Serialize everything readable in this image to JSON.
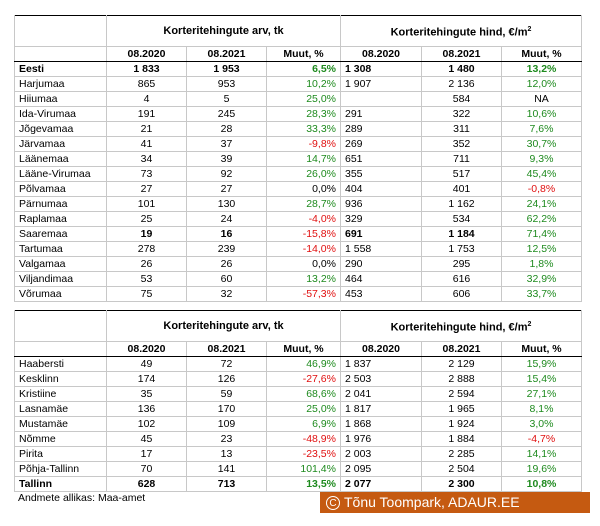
{
  "table1": {
    "group_count": "Korteritehingute arv, tk",
    "group_price_prefix": "Korteritehingute hind, €/m",
    "group_price_sup": "2",
    "headers": [
      "",
      "08.2020",
      "08.2021",
      "Muut, %",
      "08.2020",
      "08.2021",
      "Muut, %"
    ],
    "rows": [
      {
        "name": "Eesti",
        "bold": true,
        "c1": "1 833",
        "c2": "1 953",
        "cm": "6,5%",
        "cms": "pos",
        "p1": "1 308",
        "p2": "1 480",
        "pm": "13,2%",
        "pms": "pos"
      },
      {
        "name": "Harjumaa",
        "c1": "865",
        "c2": "953",
        "cm": "10,2%",
        "cms": "pos",
        "p1": "1 907",
        "p2": "2 136",
        "pm": "12,0%",
        "pms": "pos"
      },
      {
        "name": "Hiiumaa",
        "c1": "4",
        "c2": "5",
        "cm": "25,0%",
        "cms": "pos",
        "p1": "",
        "p2": "584",
        "pm": "NA",
        "pms": "neu"
      },
      {
        "name": "Ida-Virumaa",
        "c1": "191",
        "c2": "245",
        "cm": "28,3%",
        "cms": "pos",
        "p1": "291",
        "p2": "322",
        "pm": "10,6%",
        "pms": "pos"
      },
      {
        "name": "Jõgevamaa",
        "c1": "21",
        "c2": "28",
        "cm": "33,3%",
        "cms": "pos",
        "p1": "289",
        "p2": "311",
        "pm": "7,6%",
        "pms": "pos"
      },
      {
        "name": "Järvamaa",
        "c1": "41",
        "c2": "37",
        "cm": "-9,8%",
        "cms": "neg",
        "p1": "269",
        "p2": "352",
        "pm": "30,7%",
        "pms": "pos"
      },
      {
        "name": "Läänemaa",
        "c1": "34",
        "c2": "39",
        "cm": "14,7%",
        "cms": "pos",
        "p1": "651",
        "p2": "711",
        "pm": "9,3%",
        "pms": "pos"
      },
      {
        "name": "Lääne-Virumaa",
        "c1": "73",
        "c2": "92",
        "cm": "26,0%",
        "cms": "pos",
        "p1": "355",
        "p2": "517",
        "pm": "45,4%",
        "pms": "pos"
      },
      {
        "name": "Põlvamaa",
        "c1": "27",
        "c2": "27",
        "cm": "0,0%",
        "cms": "neu",
        "p1": "404",
        "p2": "401",
        "pm": "-0,8%",
        "pms": "neg"
      },
      {
        "name": "Pärnumaa",
        "c1": "101",
        "c2": "130",
        "cm": "28,7%",
        "cms": "pos",
        "p1": "936",
        "p2": "1 162",
        "pm": "24,1%",
        "pms": "pos"
      },
      {
        "name": "Raplamaa",
        "c1": "25",
        "c2": "24",
        "cm": "-4,0%",
        "cms": "neg",
        "p1": "329",
        "p2": "534",
        "pm": "62,2%",
        "pms": "pos"
      },
      {
        "name": "Saaremaa",
        "c1": "19",
        "c2": "16",
        "cm": "-15,8%",
        "cms": "neg",
        "p1": "691",
        "p2": "1 184",
        "pm": "71,4%",
        "pms": "pos",
        "boldnums": true
      },
      {
        "name": "Tartumaa",
        "c1": "278",
        "c2": "239",
        "cm": "-14,0%",
        "cms": "neg",
        "p1": "1 558",
        "p2": "1 753",
        "pm": "12,5%",
        "pms": "pos"
      },
      {
        "name": "Valgamaa",
        "c1": "26",
        "c2": "26",
        "cm": "0,0%",
        "cms": "neu",
        "p1": "290",
        "p2": "295",
        "pm": "1,8%",
        "pms": "pos"
      },
      {
        "name": "Viljandimaa",
        "c1": "53",
        "c2": "60",
        "cm": "13,2%",
        "cms": "pos",
        "p1": "464",
        "p2": "616",
        "pm": "32,9%",
        "pms": "pos"
      },
      {
        "name": "Võrumaa",
        "c1": "75",
        "c2": "32",
        "cm": "-57,3%",
        "cms": "neg",
        "p1": "453",
        "p2": "606",
        "pm": "33,7%",
        "pms": "pos"
      }
    ]
  },
  "table2": {
    "group_count": "Korteritehingute arv, tk",
    "group_price_prefix": "Korteritehingute hind, €/m",
    "group_price_sup": "2",
    "headers": [
      "",
      "08.2020",
      "08.2021",
      "Muut, %",
      "08.2020",
      "08.2021",
      "Muut, %"
    ],
    "rows": [
      {
        "name": "Haabersti",
        "c1": "49",
        "c2": "72",
        "cm": "46,9%",
        "cms": "pos",
        "p1": "1 837",
        "p2": "2 129",
        "pm": "15,9%",
        "pms": "pos"
      },
      {
        "name": "Kesklinn",
        "c1": "174",
        "c2": "126",
        "cm": "-27,6%",
        "cms": "neg",
        "p1": "2 503",
        "p2": "2 888",
        "pm": "15,4%",
        "pms": "pos"
      },
      {
        "name": "Kristiine",
        "c1": "35",
        "c2": "59",
        "cm": "68,6%",
        "cms": "pos",
        "p1": "2 041",
        "p2": "2 594",
        "pm": "27,1%",
        "pms": "pos"
      },
      {
        "name": "Lasnamäe",
        "c1": "136",
        "c2": "170",
        "cm": "25,0%",
        "cms": "pos",
        "p1": "1 817",
        "p2": "1 965",
        "pm": "8,1%",
        "pms": "pos"
      },
      {
        "name": "Mustamäe",
        "c1": "102",
        "c2": "109",
        "cm": "6,9%",
        "cms": "pos",
        "p1": "1 868",
        "p2": "1 924",
        "pm": "3,0%",
        "pms": "pos"
      },
      {
        "name": "Nõmme",
        "c1": "45",
        "c2": "23",
        "cm": "-48,9%",
        "cms": "neg",
        "p1": "1 976",
        "p2": "1 884",
        "pm": "-4,7%",
        "pms": "neg"
      },
      {
        "name": "Pirita",
        "c1": "17",
        "c2": "13",
        "cm": "-23,5%",
        "cms": "neg",
        "p1": "2 003",
        "p2": "2 285",
        "pm": "14,1%",
        "pms": "pos"
      },
      {
        "name": "Põhja-Tallinn",
        "c1": "70",
        "c2": "141",
        "cm": "101,4%",
        "cms": "pos",
        "p1": "2 095",
        "p2": "2 504",
        "pm": "19,6%",
        "pms": "pos"
      },
      {
        "name": "Tallinn",
        "bold": true,
        "c1": "628",
        "c2": "713",
        "cm": "13,5%",
        "cms": "pos",
        "p1": "2 077",
        "p2": "2 300",
        "pm": "10,8%",
        "pms": "pos"
      }
    ]
  },
  "source": "Andmete allikas: Maa-amet",
  "copyright": {
    "symbol": "C",
    "text": "Tõnu Toompark, ADAUR.EE"
  },
  "colors": {
    "positive": "#1e8a1e",
    "negative": "#e01010",
    "banner": "#c55a11"
  }
}
